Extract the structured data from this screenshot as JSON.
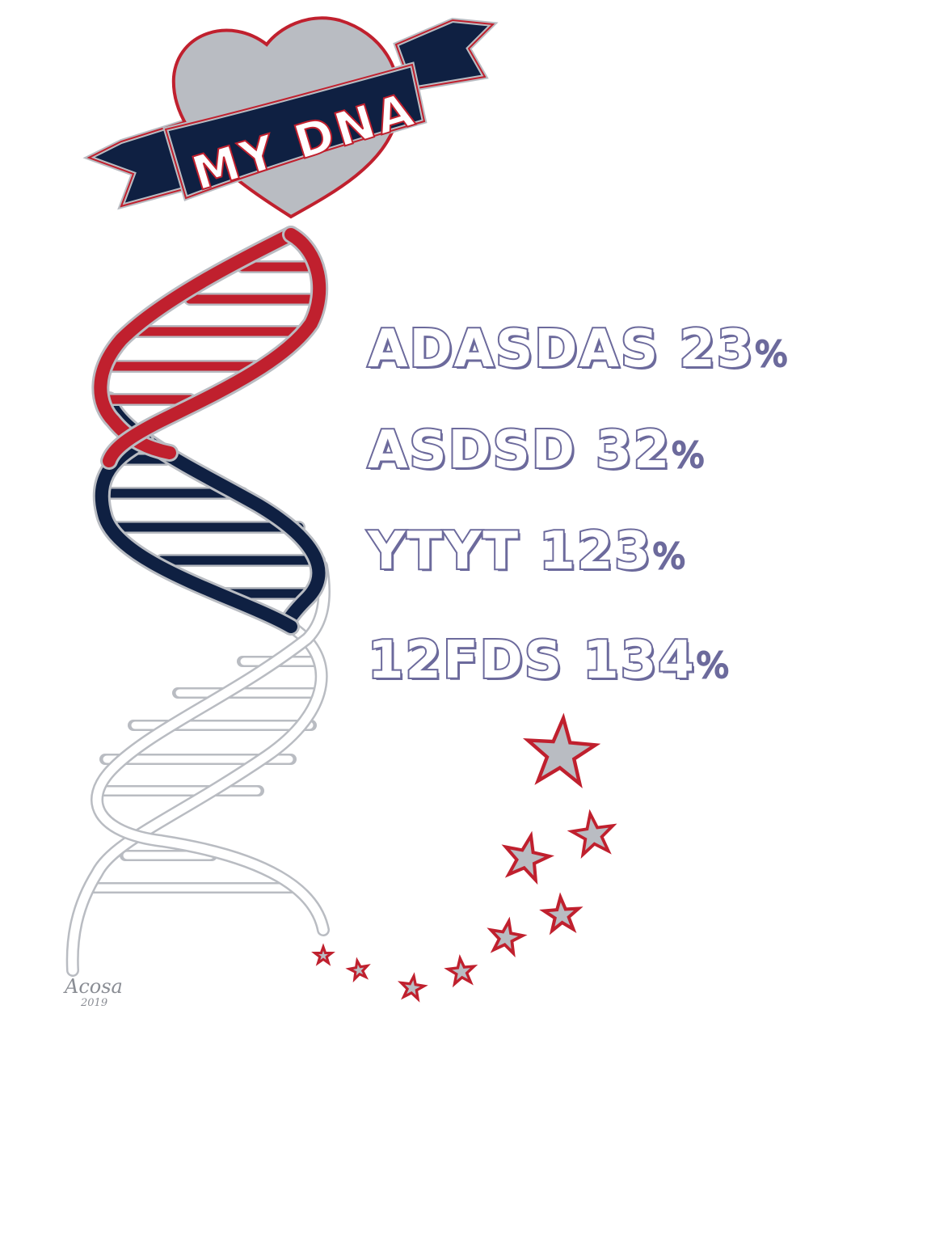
{
  "banner": {
    "text": "MY DNA"
  },
  "stats": [
    {
      "label": "ADASDAS",
      "value": "23",
      "unit": "%"
    },
    {
      "label": "ASDSD",
      "value": "32",
      "unit": "%"
    },
    {
      "label": "YTYT",
      "value": "123",
      "unit": "%"
    },
    {
      "label": "12FDS",
      "value": "134",
      "unit": "%"
    }
  ],
  "signature": {
    "name": "Acosa",
    "year": "2019"
  },
  "colors": {
    "red": "#c0202e",
    "navy": "#0f2042",
    "silver": "#b9bcc2",
    "text": "#6c6a9c"
  }
}
